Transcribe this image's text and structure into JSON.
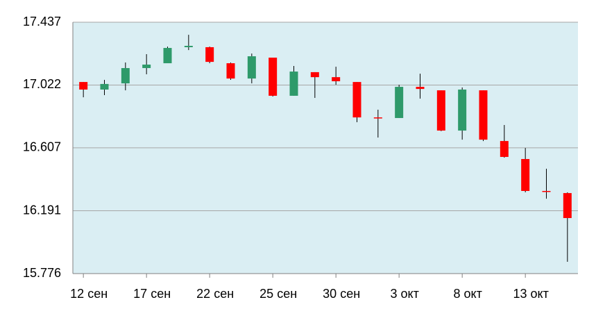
{
  "chart_data": {
    "type": "candlestick",
    "categories": [
      "12 сен",
      null,
      null,
      "17 сен",
      null,
      null,
      "22 сен",
      null,
      null,
      "25 сен",
      null,
      null,
      "30 сен",
      null,
      null,
      "3 окт",
      null,
      null,
      "8 окт",
      null,
      null,
      "13 окт",
      null,
      null
    ],
    "open": [
      17.042,
      16.992,
      17.033,
      17.134,
      17.166,
      17.272,
      17.272,
      17.166,
      17.065,
      17.203,
      16.951,
      17.107,
      17.074,
      17.042,
      16.808,
      16.804,
      17.01,
      16.987,
      16.721,
      16.987,
      16.652,
      16.533,
      16.322,
      16.308
    ],
    "high": [
      17.042,
      17.056,
      17.171,
      17.226,
      17.276,
      17.354,
      17.276,
      17.171,
      17.23,
      17.203,
      17.148,
      17.107,
      17.143,
      17.042,
      16.859,
      17.024,
      17.097,
      16.987,
      17.006,
      16.987,
      16.758,
      16.606,
      16.469,
      16.313
    ],
    "low": [
      16.941,
      16.955,
      16.987,
      17.093,
      17.166,
      17.253,
      17.166,
      17.056,
      17.033,
      16.946,
      16.951,
      16.937,
      17.024,
      16.776,
      16.675,
      16.804,
      16.932,
      16.717,
      16.661,
      16.652,
      16.542,
      16.313,
      16.271,
      15.854
    ],
    "close": [
      16.992,
      17.029,
      17.134,
      17.157,
      17.267,
      17.281,
      17.175,
      17.065,
      17.212,
      16.951,
      17.111,
      17.074,
      17.047,
      16.808,
      16.804,
      17.01,
      16.996,
      16.721,
      16.992,
      16.661,
      16.547,
      16.322,
      16.317,
      16.143
    ],
    "up_color": "#2e9a6a",
    "down_color": "#ff0000",
    "ylim": [
      15.776,
      17.437
    ],
    "yticks": [
      15.776,
      16.191,
      16.607,
      17.022,
      17.437
    ],
    "grid": true
  }
}
